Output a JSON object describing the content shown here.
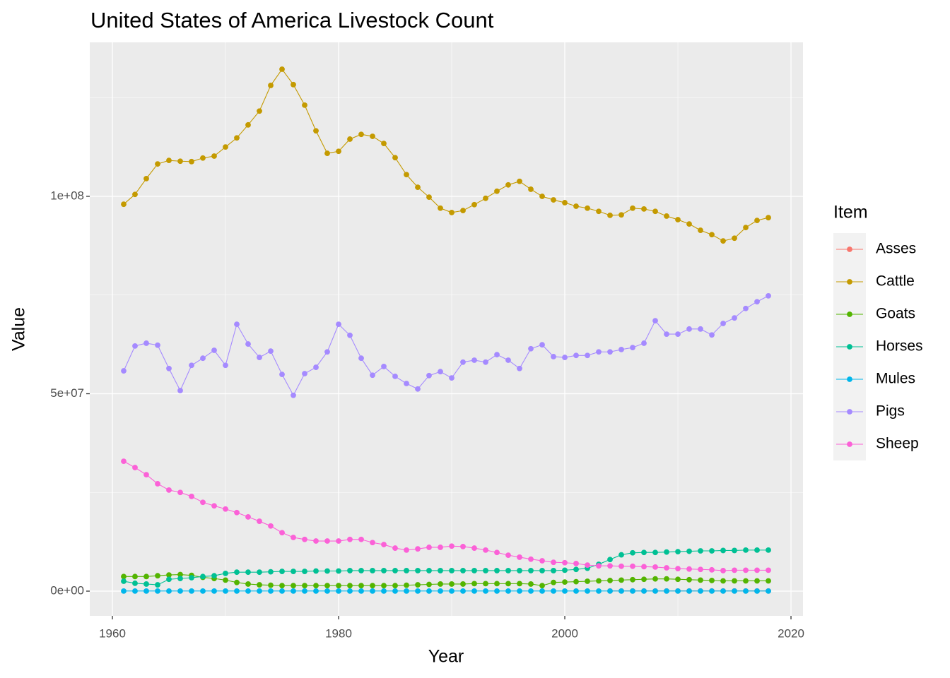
{
  "chart_data": {
    "type": "line",
    "title": "United States of America  Livestock Count",
    "x_label": "Year",
    "y_label": "Value",
    "legend_title": "Item",
    "legend_position": "right",
    "grid": true,
    "xlim": [
      1958,
      2021.06
    ],
    "ylim": [
      -6260000.0,
      139000000.0
    ],
    "xticks": [
      1960,
      1980,
      2000,
      2020
    ],
    "yticks": [
      {
        "value": 0,
        "label": "0e+00"
      },
      {
        "value": 50000000,
        "label": "5e+07"
      },
      {
        "value": 100000000,
        "label": "1e+08"
      }
    ],
    "x": [
      1961,
      1962,
      1963,
      1964,
      1965,
      1966,
      1967,
      1968,
      1969,
      1970,
      1971,
      1972,
      1973,
      1974,
      1975,
      1976,
      1977,
      1978,
      1979,
      1980,
      1981,
      1982,
      1983,
      1984,
      1985,
      1986,
      1987,
      1988,
      1989,
      1990,
      1991,
      1992,
      1993,
      1994,
      1995,
      1996,
      1997,
      1998,
      1999,
      2000,
      2001,
      2002,
      2003,
      2004,
      2005,
      2006,
      2007,
      2008,
      2009,
      2010,
      2011,
      2012,
      2013,
      2014,
      2015,
      2016,
      2017,
      2018
    ],
    "series": [
      {
        "name": "Asses",
        "color": "#F8766D",
        "values": [
          null,
          null,
          null,
          null,
          null,
          null,
          null,
          null,
          null,
          null,
          null,
          null,
          null,
          null,
          null,
          null,
          null,
          null,
          null,
          null,
          null,
          null,
          null,
          null,
          null,
          null,
          null,
          null,
          null,
          null,
          null,
          null,
          null,
          null,
          null,
          null,
          null,
          null,
          null,
          null,
          null,
          null,
          null,
          50000.0,
          50000.0,
          50000.0,
          50000.0,
          50000.0,
          50000.0,
          50000.0,
          50000.0,
          50000.0,
          50000.0,
          50000.0,
          50000.0,
          50000.0,
          50000.0,
          50000.0
        ]
      },
      {
        "name": "Cattle",
        "color": "#C49A00",
        "values": [
          98000000.0,
          100500000.0,
          104500000.0,
          108200000.0,
          109100000.0,
          108900000.0,
          108800000.0,
          109700000.0,
          110200000.0,
          112500000.0,
          114800000.0,
          118100000.0,
          121600000.0,
          128100000.0,
          132200000.0,
          128300000.0,
          123100000.0,
          116600000.0,
          110900000.0,
          111400000.0,
          114500000.0,
          115700000.0,
          115200000.0,
          113400000.0,
          109800000.0,
          105500000.0,
          102300000.0,
          99800000.0,
          97000000.0,
          95900000.0,
          96400000.0,
          97900000.0,
          99500000.0,
          101300000.0,
          102900000.0,
          103800000.0,
          101800000.0,
          100000000.0,
          99100000.0,
          98400000.0,
          97500000.0,
          97000000.0,
          96200000.0,
          95200000.0,
          95300000.0,
          97000000.0,
          96800000.0,
          96200000.0,
          95000000.0,
          94100000.0,
          93000000.0,
          91400000.0,
          90300000.0,
          88700000.0,
          89400000.0,
          92100000.0,
          93900000.0,
          94600000.0
        ]
      },
      {
        "name": "Goats",
        "color": "#53B400",
        "values": [
          3700000.0,
          3700000.0,
          3700000.0,
          3900000.0,
          4100000.0,
          4200000.0,
          4000000.0,
          3500000.0,
          3200000.0,
          2800000.0,
          2200000.0,
          1800000.0,
          1600000.0,
          1500000.0,
          1400000.0,
          1400000.0,
          1400000.0,
          1400000.0,
          1400000.0,
          1400000.0,
          1400000.0,
          1400000.0,
          1400000.0,
          1400000.0,
          1400000.0,
          1500000.0,
          1600000.0,
          1700000.0,
          1800000.0,
          1800000.0,
          1800000.0,
          1900000.0,
          1900000.0,
          1900000.0,
          1900000.0,
          1900000.0,
          1800000.0,
          1400000.0,
          2200000.0,
          2300000.0,
          2400000.0,
          2500000.0,
          2600000.0,
          2700000.0,
          2800000.0,
          2900000.0,
          3000000.0,
          3100000.0,
          3100000.0,
          3000000.0,
          2900000.0,
          2800000.0,
          2700000.0,
          2600000.0,
          2600000.0,
          2600000.0,
          2600000.0,
          2600000.0
        ]
      },
      {
        "name": "Horses",
        "color": "#00C094",
        "values": [
          2500000.0,
          2000000.0,
          1800000.0,
          1600000.0,
          3000000.0,
          3200000.0,
          3400000.0,
          3700000.0,
          3900000.0,
          4500000.0,
          4800000.0,
          4800000.0,
          4800000.0,
          4900000.0,
          5000000.0,
          5000000.0,
          5000000.0,
          5100000.0,
          5100000.0,
          5100000.0,
          5200000.0,
          5200000.0,
          5200000.0,
          5200000.0,
          5200000.0,
          5200000.0,
          5200000.0,
          5200000.0,
          5200000.0,
          5200000.0,
          5200000.0,
          5200000.0,
          5200000.0,
          5200000.0,
          5200000.0,
          5200000.0,
          5200000.0,
          5200000.0,
          5200000.0,
          5300000.0,
          5500000.0,
          5800000.0,
          6800000.0,
          8000000.0,
          9200000.0,
          9700000.0,
          9800000.0,
          9800000.0,
          9900000.0,
          10000000.0,
          10100000.0,
          10200000.0,
          10200000.0,
          10300000.0,
          10300000.0,
          10400000.0,
          10400000.0,
          10400000.0
        ]
      },
      {
        "name": "Mules",
        "color": "#00B6EB",
        "values": [
          30000.0,
          30000.0,
          30000.0,
          30000.0,
          30000.0,
          30000.0,
          30000.0,
          30000.0,
          30000.0,
          30000.0,
          30000.0,
          30000.0,
          30000.0,
          30000.0,
          30000.0,
          30000.0,
          30000.0,
          30000.0,
          30000.0,
          30000.0,
          30000.0,
          30000.0,
          30000.0,
          30000.0,
          30000.0,
          30000.0,
          30000.0,
          30000.0,
          30000.0,
          30000.0,
          30000.0,
          30000.0,
          30000.0,
          30000.0,
          30000.0,
          30000.0,
          30000.0,
          30000.0,
          30000.0,
          30000.0,
          30000.0,
          30000.0,
          30000.0,
          30000.0,
          30000.0,
          30000.0,
          30000.0,
          30000.0,
          30000.0,
          30000.0,
          30000.0,
          30000.0,
          30000.0,
          30000.0,
          30000.0,
          30000.0,
          30000.0,
          30000.0
        ]
      },
      {
        "name": "Pigs",
        "color": "#A58AFF",
        "values": [
          55800000.0,
          62100000.0,
          62800000.0,
          62300000.0,
          56400000.0,
          50800000.0,
          57200000.0,
          59000000.0,
          61000000.0,
          57200000.0,
          67600000.0,
          62600000.0,
          59200000.0,
          60800000.0,
          54900000.0,
          49600000.0,
          55100000.0,
          56700000.0,
          60600000.0,
          67600000.0,
          64800000.0,
          59000000.0,
          54700000.0,
          56900000.0,
          54400000.0,
          52600000.0,
          51200000.0,
          54600000.0,
          55600000.0,
          54000000.0,
          58000000.0,
          58500000.0,
          58000000.0,
          59900000.0,
          58500000.0,
          56400000.0,
          61400000.0,
          62400000.0,
          59400000.0,
          59200000.0,
          59700000.0,
          59700000.0,
          60600000.0,
          60600000.0,
          61200000.0,
          61700000.0,
          62800000.0,
          68500000.0,
          65100000.0,
          65100000.0,
          66400000.0,
          66400000.0,
          64900000.0,
          67800000.0,
          69200000.0,
          71600000.0,
          73300000.0,
          74800000.0
        ]
      },
      {
        "name": "Sheep",
        "color": "#FB61D7",
        "values": [
          32900000.0,
          31300000.0,
          29500000.0,
          27200000.0,
          25600000.0,
          25000000.0,
          24000000.0,
          22500000.0,
          21600000.0,
          20800000.0,
          19900000.0,
          18800000.0,
          17700000.0,
          16500000.0,
          14800000.0,
          13600000.0,
          13100000.0,
          12700000.0,
          12700000.0,
          12700000.0,
          13100000.0,
          13100000.0,
          12300000.0,
          11800000.0,
          10900000.0,
          10400000.0,
          10700000.0,
          11100000.0,
          11100000.0,
          11400000.0,
          11300000.0,
          10900000.0,
          10400000.0,
          9800000.0,
          9100000.0,
          8600000.0,
          8100000.0,
          7700000.0,
          7300000.0,
          7200000.0,
          7000000.0,
          6600000.0,
          6400000.0,
          6400000.0,
          6300000.0,
          6300000.0,
          6200000.0,
          6100000.0,
          5900000.0,
          5700000.0,
          5600000.0,
          5500000.0,
          5400000.0,
          5200000.0,
          5300000.0,
          5300000.0,
          5300000.0,
          5300000.0
        ]
      }
    ]
  }
}
